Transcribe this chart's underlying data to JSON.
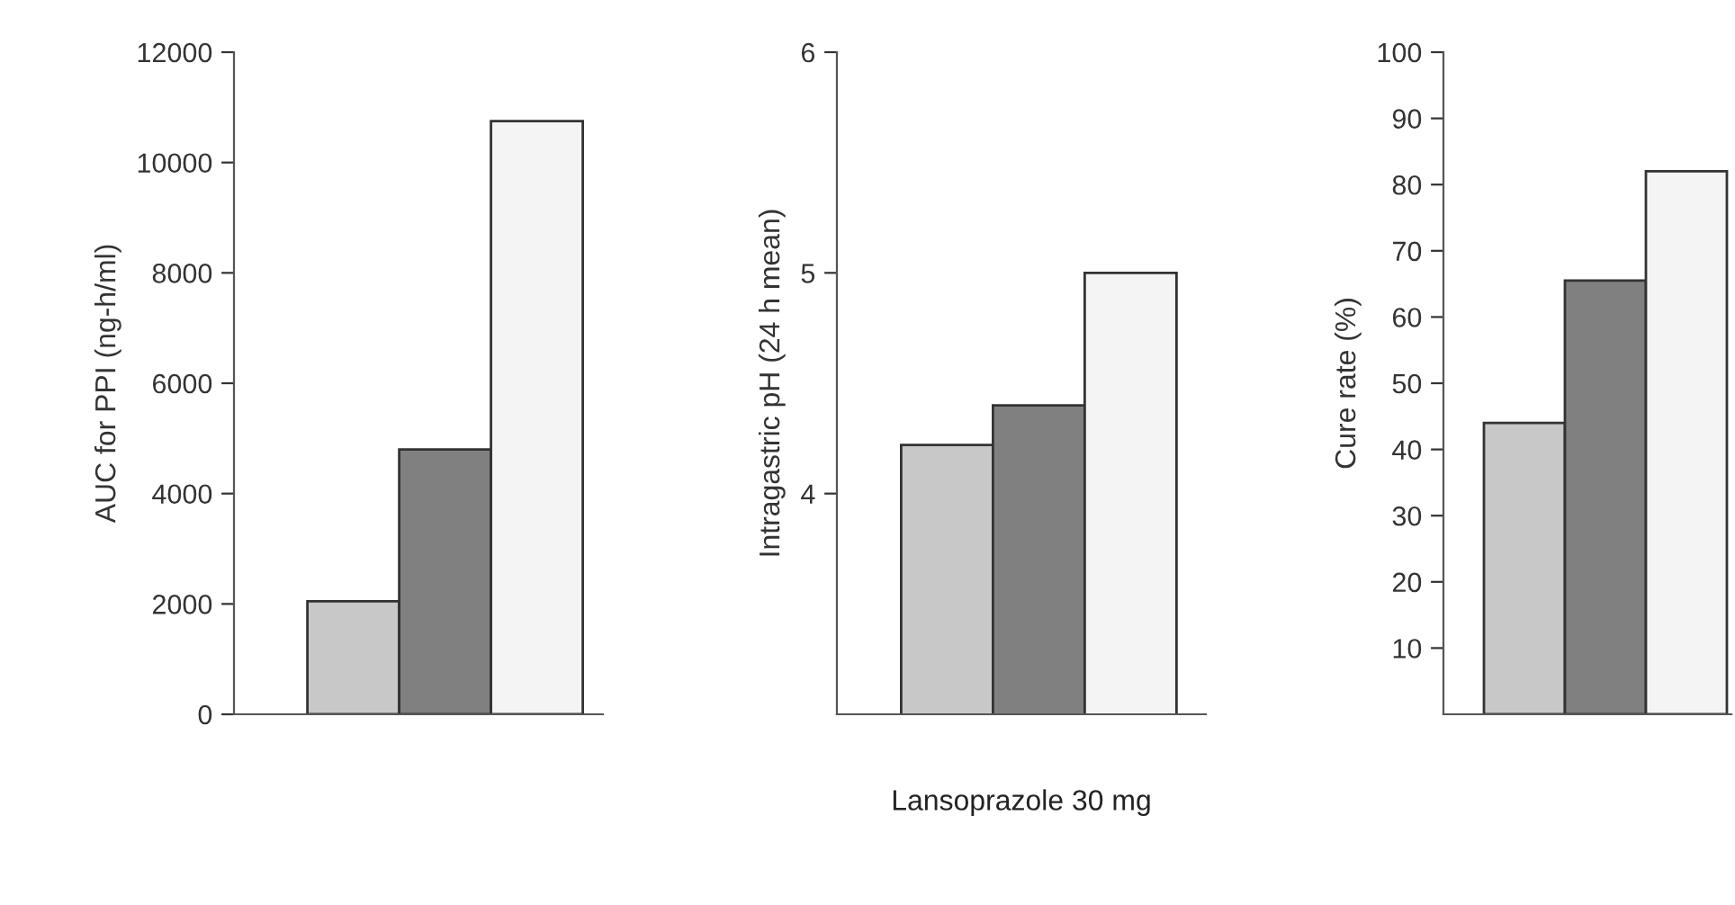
{
  "chart_data": [
    {
      "type": "bar",
      "categories": [
        null,
        null,
        null
      ],
      "values": [
        2050,
        4800,
        10750
      ],
      "colors": [
        "#c8c8c8",
        "#808080",
        "#f4f4f4"
      ],
      "ylabel": "AUC for PPI (ng-h/ml)",
      "ylim": [
        0,
        12000
      ],
      "yticks": [
        0,
        2000,
        4000,
        6000,
        8000,
        10000,
        12000
      ],
      "grid": false,
      "tick_labels": "y"
    },
    {
      "type": "bar",
      "categories": [
        null,
        null,
        null
      ],
      "values": [
        4.22,
        4.4,
        5.0
      ],
      "colors": [
        "#c8c8c8",
        "#808080",
        "#f4f4f4"
      ],
      "ylabel": "Intragastric pH (24 h mean)",
      "xlabel": "Lansoprazole 30 mg",
      "ylim": [
        3,
        6
      ],
      "yticks": [
        4,
        5,
        6
      ],
      "grid": false,
      "tick_labels": "y"
    },
    {
      "type": "bar",
      "categories": [
        null,
        null,
        null
      ],
      "values": [
        44,
        65.5,
        82
      ],
      "colors": [
        "#c8c8c8",
        "#808080",
        "#f4f4f4"
      ],
      "ylabel": "Cure rate (%)",
      "ylim": [
        0,
        100
      ],
      "yticks": [
        10,
        20,
        30,
        40,
        50,
        60,
        70,
        80,
        90,
        100
      ],
      "grid": false,
      "tick_labels": "y"
    }
  ]
}
